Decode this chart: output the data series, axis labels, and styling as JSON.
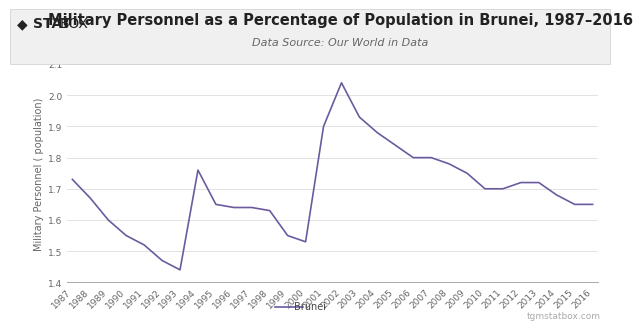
{
  "title": "Military Personnel as a Percentage of Population in Brunei, 1987–2016",
  "subtitle": "Data Source: Our World in Data",
  "ylabel": "Military Personnel ( population)",
  "legend_label": "Brunei",
  "line_color": "#6b5b9e",
  "background_color": "#ffffff",
  "grid_color": "#dddddd",
  "years": [
    1987,
    1988,
    1989,
    1990,
    1991,
    1992,
    1993,
    1994,
    1995,
    1996,
    1997,
    1998,
    1999,
    2000,
    2001,
    2002,
    2003,
    2004,
    2005,
    2006,
    2007,
    2008,
    2009,
    2010,
    2011,
    2012,
    2013,
    2014,
    2015,
    2016
  ],
  "values": [
    1.73,
    1.67,
    1.6,
    1.55,
    1.52,
    1.47,
    1.44,
    1.76,
    1.65,
    1.64,
    1.64,
    1.63,
    1.55,
    1.53,
    1.9,
    2.04,
    1.93,
    1.88,
    1.84,
    1.8,
    1.8,
    1.78,
    1.75,
    1.7,
    1.7,
    1.72,
    1.72,
    1.68,
    1.65,
    1.65
  ],
  "ylim": [
    1.4,
    2.1
  ],
  "yticks": [
    1.4,
    1.5,
    1.6,
    1.7,
    1.8,
    1.9,
    2.0,
    2.1
  ],
  "title_fontsize": 10.5,
  "subtitle_fontsize": 8,
  "ylabel_fontsize": 7,
  "tick_fontsize": 6.5,
  "legend_fontsize": 7,
  "watermark": "tgmstatbox.com",
  "logo_diamond": "◆",
  "logo_stat": "STAT",
  "logo_box": "BOX",
  "header_bg": "#f0f0f0",
  "header_border": "#cccccc"
}
